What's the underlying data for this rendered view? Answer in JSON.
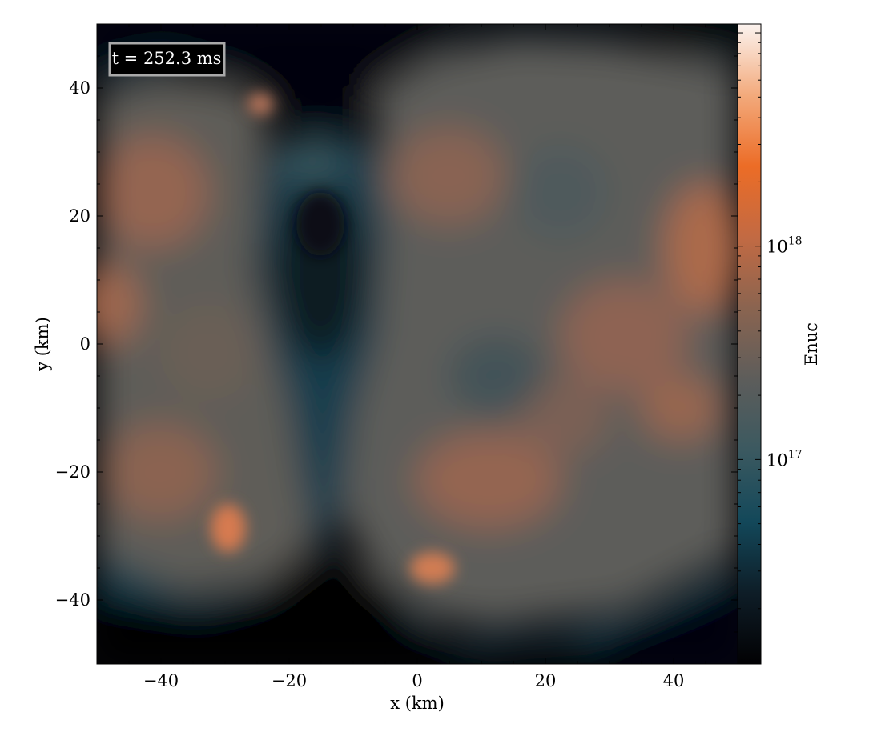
{
  "chart_data": {
    "type": "heatmap",
    "title": "",
    "xlabel": "x  (km)",
    "ylabel": "y  (km)",
    "xlim": [
      -50,
      50
    ],
    "ylim": [
      -50,
      50
    ],
    "x_ticks": [
      -40,
      -20,
      0,
      20,
      40
    ],
    "y_ticks": [
      -40,
      -20,
      0,
      20,
      40
    ],
    "x_tick_labels": [
      "−40",
      "−20",
      "0",
      "20",
      "40"
    ],
    "y_tick_labels": [
      "−40",
      "−20",
      "0",
      "20",
      "40"
    ],
    "annotation": "t = 252.3 ms",
    "colorbar": {
      "label": "Enuc",
      "scale": "log",
      "range": [
        1.1e+16,
        1.1e+19
      ],
      "ticks": [
        {
          "value": 1e+17,
          "base": "10",
          "exponent": "17"
        },
        {
          "value": 1e+18,
          "base": "10",
          "exponent": "18"
        }
      ],
      "colormap": [
        "#020103",
        "#0e1d27",
        "#13485a",
        "#3b5960",
        "#5d5d5b",
        "#8a6450",
        "#c26a43",
        "#ec6c26",
        "#f3aa7c",
        "#fbf3ef"
      ]
    },
    "grid": false
  }
}
